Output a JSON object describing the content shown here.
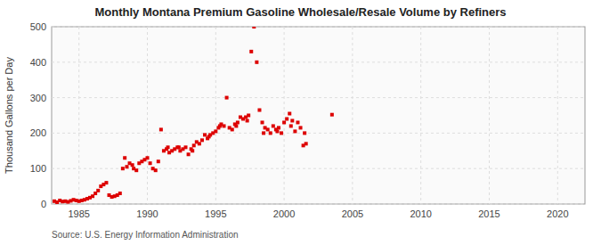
{
  "chart_data": {
    "type": "scatter",
    "title": "Monthly Montana Premium Gasoline Wholesale/Resale Volume by Refiners",
    "ylabel": "Thousand Gallons per Day",
    "source": "Source: U.S. Energy Information Administration",
    "color": "#dd0000",
    "marker": "square",
    "grid": true,
    "xlim": [
      1983,
      2022
    ],
    "ylim": [
      0,
      500
    ],
    "xticks": [
      1985,
      1990,
      1995,
      2000,
      2005,
      2010,
      2015,
      2020
    ],
    "yticks": [
      0,
      100,
      200,
      300,
      400,
      500
    ],
    "x": [
      1983.2,
      1983.4,
      1983.6,
      1983.8,
      1984.0,
      1984.2,
      1984.4,
      1984.6,
      1984.8,
      1985.0,
      1985.2,
      1985.4,
      1985.6,
      1985.8,
      1986.0,
      1986.2,
      1986.4,
      1986.6,
      1986.8,
      1987.0,
      1987.2,
      1987.4,
      1987.6,
      1987.8,
      1988.0,
      1988.2,
      1988.35,
      1988.5,
      1988.7,
      1988.9,
      1989.0,
      1989.2,
      1989.4,
      1989.6,
      1989.8,
      1990.0,
      1990.2,
      1990.4,
      1990.6,
      1990.8,
      1991.0,
      1991.2,
      1991.4,
      1991.6,
      1991.8,
      1992.0,
      1992.2,
      1992.4,
      1992.6,
      1992.8,
      1993.0,
      1993.2,
      1993.4,
      1993.6,
      1993.8,
      1994.0,
      1994.2,
      1994.4,
      1994.6,
      1994.8,
      1995.0,
      1995.2,
      1995.4,
      1995.6,
      1995.8,
      1996.0,
      1996.2,
      1996.4,
      1996.6,
      1996.8,
      1997.0,
      1997.2,
      1997.4,
      1997.6,
      1997.8,
      1998.0,
      1998.2,
      1998.4,
      1998.6,
      1998.8,
      1999.0,
      1999.2,
      1999.4,
      1999.6,
      1999.8,
      2000.0,
      2000.2,
      2000.4,
      2000.6,
      2000.8,
      2001.0,
      2001.2,
      2001.4,
      2001.6,
      2003.5,
      1991.5,
      1992.3,
      1993.3,
      1994.5,
      1995.3,
      1996.5,
      1997.3,
      1998.5,
      1999.5,
      2000.5,
      2001.5
    ],
    "values": [
      8,
      5,
      10,
      7,
      8,
      6,
      9,
      12,
      10,
      8,
      10,
      12,
      15,
      18,
      22,
      30,
      38,
      50,
      55,
      60,
      25,
      20,
      22,
      25,
      30,
      100,
      130,
      105,
      115,
      110,
      100,
      95,
      115,
      120,
      125,
      130,
      115,
      100,
      95,
      120,
      210,
      150,
      155,
      145,
      150,
      155,
      160,
      150,
      155,
      160,
      140,
      155,
      165,
      175,
      170,
      180,
      195,
      185,
      195,
      200,
      205,
      215,
      225,
      220,
      300,
      215,
      210,
      225,
      230,
      245,
      240,
      245,
      250,
      430,
      500,
      400,
      265,
      230,
      215,
      210,
      200,
      220,
      210,
      215,
      200,
      230,
      240,
      255,
      235,
      205,
      230,
      215,
      165,
      170,
      252,
      160,
      160,
      150,
      190,
      220,
      220,
      235,
      200,
      205,
      220,
      200
    ]
  }
}
